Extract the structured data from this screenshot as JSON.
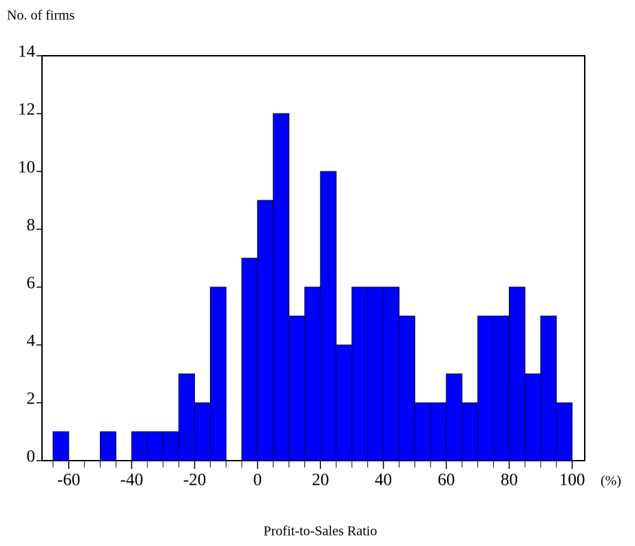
{
  "chart_data": {
    "type": "histogram",
    "y_label": "No. of firms",
    "x_label": "Profit-to-Sales Ratio",
    "x_unit": "(%)",
    "bins": [
      -65,
      -60,
      -55,
      -50,
      -45,
      -40,
      -35,
      -30,
      -25,
      -20,
      -15,
      -10,
      -5,
      0,
      5,
      10,
      15,
      20,
      25,
      30,
      35,
      40,
      45,
      50,
      55,
      60,
      65,
      70,
      75,
      80,
      85,
      90,
      95,
      100
    ],
    "values": [
      1,
      0,
      0,
      1,
      0,
      1,
      1,
      1,
      3,
      2,
      6,
      0,
      7,
      9,
      12,
      5,
      6,
      10,
      4,
      6,
      6,
      6,
      5,
      2,
      2,
      3,
      2,
      5,
      5,
      6,
      3,
      5,
      2
    ],
    "color": "#0000ff",
    "xlim": [
      -68.5,
      104
    ],
    "ylim": [
      0,
      14
    ],
    "xticks": [
      -60,
      -40,
      -20,
      0,
      20,
      40,
      60,
      80,
      100
    ],
    "yticks": [
      0,
      2,
      4,
      6,
      8,
      10,
      12,
      14
    ]
  }
}
